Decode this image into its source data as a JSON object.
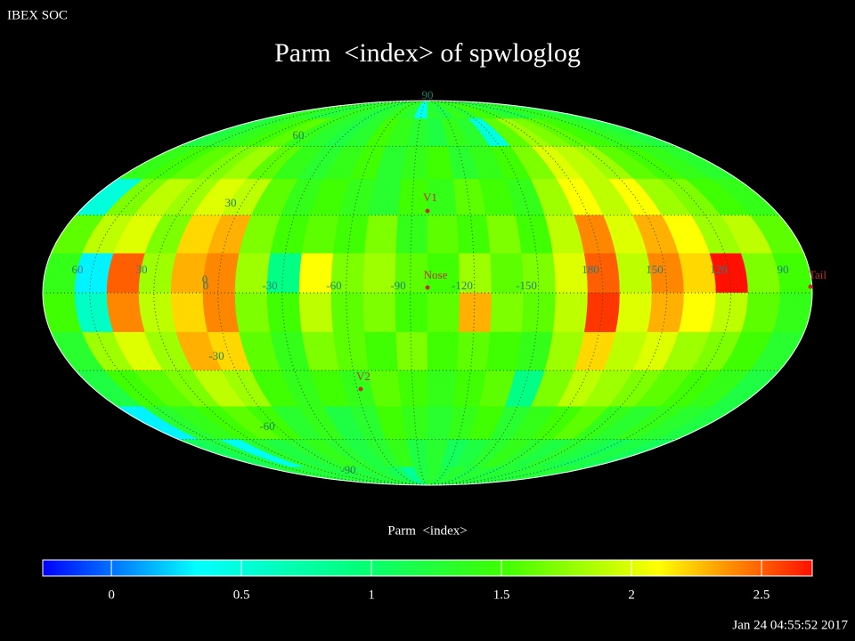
{
  "chart_data": {
    "type": "heatmap",
    "header": "IBEX SOC",
    "title": "Parm  <index> of spwloglog",
    "timestamp": "Jan 24 04:55:52 2017",
    "projection": "mollweide",
    "values": [
      [
        1.3,
        1.4,
        1.3,
        1.2,
        1.3,
        1.4,
        1.3,
        1.2,
        1.3,
        1.4,
        1.3,
        0.4,
        1.3,
        1.2,
        1.4,
        1.3,
        1.5,
        1.4,
        1.3,
        1.2,
        1.3,
        1.4,
        1.3,
        1.2
      ],
      [
        1.2,
        1.3,
        1.4,
        1.5,
        1.6,
        1.4,
        1.3,
        1.2,
        1.3,
        1.5,
        1.4,
        1.3,
        1.2,
        1.4,
        1.3,
        0.5,
        1.6,
        1.8,
        1.7,
        1.6,
        1.5,
        1.4,
        1.3,
        1.2
      ],
      [
        1.4,
        1.5,
        1.6,
        1.7,
        1.8,
        1.6,
        1.4,
        1.3,
        1.4,
        1.5,
        1.3,
        1.4,
        1.5,
        1.3,
        1.4,
        1.5,
        1.7,
        2.0,
        1.9,
        1.8,
        1.6,
        1.5,
        1.4,
        1.3
      ],
      [
        0.5,
        1.7,
        1.9,
        1.8,
        2.0,
        1.9,
        1.6,
        1.4,
        1.5,
        1.4,
        1.3,
        1.5,
        1.4,
        1.6,
        1.5,
        1.4,
        1.8,
        2.1,
        1.9,
        2.1,
        1.8,
        1.7,
        1.5,
        1.4
      ],
      [
        1.6,
        1.9,
        2.0,
        1.7,
        2.2,
        2.3,
        1.7,
        1.5,
        1.6,
        1.5,
        1.7,
        1.4,
        1.6,
        1.5,
        1.7,
        1.5,
        1.9,
        2.4,
        2.0,
        2.3,
        2.1,
        1.8,
        1.9,
        1.6
      ],
      [
        1.4,
        0.3,
        2.5,
        1.8,
        2.3,
        2.4,
        1.8,
        0.9,
        2.1,
        1.7,
        1.8,
        1.6,
        1.5,
        1.8,
        1.6,
        1.7,
        2.0,
        2.5,
        1.9,
        2.4,
        2.2,
        2.7,
        1.7,
        1.5
      ],
      [
        1.5,
        0.6,
        2.4,
        1.9,
        2.2,
        2.4,
        1.7,
        1.5,
        1.9,
        1.6,
        1.7,
        1.5,
        1.6,
        2.3,
        1.7,
        1.6,
        1.9,
        2.6,
        2.0,
        2.3,
        2.1,
        1.9,
        1.6,
        1.4
      ],
      [
        1.3,
        1.8,
        2.0,
        1.8,
        2.3,
        2.2,
        1.6,
        1.4,
        1.7,
        1.6,
        1.5,
        1.7,
        1.5,
        1.6,
        1.5,
        1.4,
        1.8,
        2.2,
        1.9,
        2.0,
        1.8,
        1.7,
        1.5,
        1.3
      ],
      [
        1.2,
        1.5,
        1.6,
        1.7,
        1.9,
        1.8,
        1.5,
        1.4,
        1.5,
        1.4,
        1.6,
        1.5,
        1.4,
        1.5,
        1.6,
        0.9,
        1.7,
        1.9,
        1.8,
        1.7,
        1.6,
        1.5,
        1.4,
        1.2
      ],
      [
        0.3,
        1.3,
        1.4,
        1.5,
        1.6,
        1.5,
        1.3,
        1.4,
        1.2,
        1.3,
        1.5,
        1.4,
        1.3,
        1.4,
        1.5,
        1.3,
        1.4,
        1.5,
        1.6,
        1.4,
        1.3,
        1.4,
        1.3,
        1.2
      ],
      [
        1.1,
        1.2,
        0.4,
        1.3,
        1.2,
        1.3,
        1.4,
        1.3,
        1.2,
        1.3,
        1.4,
        1.2,
        1.3,
        1.1,
        1.2,
        1.3,
        1.4,
        1.3,
        1.2,
        1.3,
        1.2,
        1.1,
        1.2,
        1.1
      ],
      [
        1.2,
        1.3,
        1.2,
        1.3,
        1.2,
        1.3,
        1.2,
        1.3,
        1.2,
        1.1,
        0.8,
        1.2,
        1.3,
        1.2,
        1.3,
        1.2,
        1.3,
        1.2,
        1.3,
        1.2,
        1.3,
        1.2,
        1.3,
        1.2
      ]
    ],
    "lon_labels": [
      60,
      30,
      0,
      -30,
      -60,
      -90,
      -120,
      -150,
      180,
      150,
      120,
      90
    ],
    "lat_labels": [
      90,
      60,
      30,
      0,
      -30,
      -60,
      -90
    ],
    "markers": [
      "V1",
      "Nose",
      "V2",
      "Tail"
    ],
    "colormap": [
      "#0000ff",
      "#00ffff",
      "#00ff80",
      "#40ff00",
      "#ffff00",
      "#ff1000"
    ],
    "colorbar": {
      "label": "Parm  <index>",
      "lim": [
        -0.264,
        2.695
      ],
      "ticks": [
        0,
        0.5,
        1,
        1.5,
        2,
        2.5
      ]
    }
  }
}
